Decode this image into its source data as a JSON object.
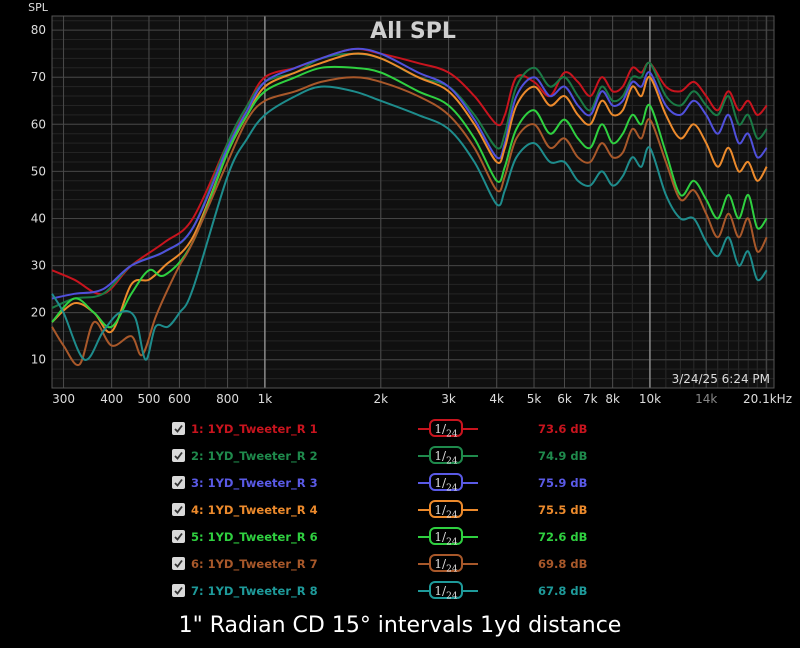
{
  "chart_data": {
    "type": "line",
    "title": "All SPL",
    "ylabel": "SPL",
    "xscale": "log",
    "xlim": [
      280,
      21000
    ],
    "ylim": [
      4,
      83
    ],
    "yticks": [
      10,
      20,
      30,
      40,
      50,
      60,
      70,
      80
    ],
    "xticks": [
      {
        "v": 300,
        "label": "300",
        "major": false
      },
      {
        "v": 400,
        "label": "400",
        "major": false
      },
      {
        "v": 500,
        "label": "500",
        "major": false
      },
      {
        "v": 600,
        "label": "600",
        "major": false
      },
      {
        "v": 800,
        "label": "800",
        "major": false
      },
      {
        "v": 1000,
        "label": "1k",
        "major": true
      },
      {
        "v": 2000,
        "label": "2k",
        "major": false
      },
      {
        "v": 3000,
        "label": "3k",
        "major": false
      },
      {
        "v": 4000,
        "label": "4k",
        "major": false
      },
      {
        "v": 5000,
        "label": "5k",
        "major": false
      },
      {
        "v": 6000,
        "label": "6k",
        "major": false
      },
      {
        "v": 7000,
        "label": "7k",
        "major": false
      },
      {
        "v": 8000,
        "label": "8k",
        "major": false
      },
      {
        "v": 10000,
        "label": "10k",
        "major": true
      },
      {
        "v": 14000,
        "label": "14k",
        "major": false,
        "dim": true
      },
      {
        "v": 20100,
        "label": "20.1kHz",
        "major": false
      }
    ],
    "grid": true,
    "timestamp": "3/24/25 6:24 PM",
    "series": [
      {
        "name": "1: 1YD_Tweeter_R 1",
        "color": "#c8141e",
        "x": [
          280,
          320,
          380,
          450,
          550,
          650,
          800,
          900,
          1000,
          1200,
          1400,
          1700,
          2000,
          2500,
          3000,
          3500,
          4000,
          4200,
          4500,
          5000,
          5500,
          6000,
          6500,
          7000,
          7500,
          8000,
          8500,
          9000,
          9500,
          10000,
          11000,
          12000,
          13000,
          14000,
          15000,
          16000,
          17000,
          18000,
          19000,
          20100
        ],
        "y": [
          29,
          27,
          24,
          30,
          35,
          40,
          56,
          64,
          70,
          72,
          74,
          76,
          75,
          73,
          71,
          66,
          60,
          62,
          70,
          69,
          66,
          71,
          69,
          66,
          70,
          67,
          68,
          72,
          71,
          73,
          68,
          67,
          69,
          66,
          63,
          67,
          63,
          65,
          62,
          64
        ]
      },
      {
        "name": "2: 1YD_Tweeter_R 2",
        "color": "#1a7a45",
        "x": [
          280,
          320,
          380,
          450,
          550,
          650,
          800,
          900,
          1000,
          1200,
          1400,
          1700,
          2000,
          2500,
          3000,
          3500,
          4000,
          4200,
          4500,
          5000,
          5500,
          6000,
          6500,
          7000,
          7500,
          8000,
          8500,
          9000,
          9500,
          10000,
          11000,
          12000,
          13000,
          14000,
          15000,
          16000,
          17000,
          18000,
          19000,
          20100
        ],
        "y": [
          21,
          23,
          24,
          30,
          33,
          38,
          56,
          64,
          69,
          71,
          74,
          75,
          74,
          70,
          68,
          62,
          55,
          58,
          68,
          72,
          68,
          70,
          66,
          63,
          68,
          65,
          66,
          70,
          70,
          73,
          66,
          64,
          67,
          64,
          62,
          66,
          60,
          62,
          57,
          59
        ]
      },
      {
        "name": "3: 1YD_Tweeter_R 3",
        "color": "#5050dc",
        "x": [
          280,
          320,
          380,
          450,
          550,
          650,
          800,
          900,
          1000,
          1200,
          1400,
          1700,
          2000,
          2500,
          3000,
          3500,
          4000,
          4200,
          4500,
          5000,
          5500,
          6000,
          6500,
          7000,
          7500,
          8000,
          8500,
          9000,
          9500,
          10000,
          11000,
          12000,
          13000,
          14000,
          15000,
          16000,
          17000,
          18000,
          19000,
          20100
        ],
        "y": [
          23,
          24,
          25,
          30,
          33,
          38,
          55,
          63,
          69,
          72,
          74,
          76,
          75,
          71,
          68,
          61,
          53,
          56,
          66,
          70,
          66,
          68,
          64,
          62,
          67,
          64,
          65,
          69,
          68,
          71,
          64,
          62,
          65,
          62,
          58,
          62,
          56,
          58,
          53,
          55
        ]
      },
      {
        "name": "4: 1YD_Tweeter_R 4",
        "color": "#ec8a2c",
        "x": [
          280,
          320,
          360,
          400,
          450,
          500,
          550,
          650,
          800,
          900,
          1000,
          1200,
          1400,
          1700,
          2000,
          2500,
          3000,
          3500,
          4000,
          4200,
          4500,
          5000,
          5500,
          6000,
          6500,
          7000,
          7500,
          8000,
          8500,
          9000,
          9500,
          10000,
          11000,
          12000,
          13000,
          14000,
          15000,
          16000,
          17000,
          18000,
          19000,
          20100
        ],
        "y": [
          18,
          22,
          20,
          16,
          26,
          27,
          30,
          36,
          54,
          62,
          68,
          71,
          73,
          75,
          74,
          70,
          67,
          60,
          52,
          55,
          64,
          68,
          64,
          66,
          62,
          60,
          65,
          62,
          63,
          68,
          66,
          70,
          62,
          57,
          60,
          56,
          51,
          55,
          50,
          52,
          48,
          51
        ]
      },
      {
        "name": "5: 1YD_Tweeter_R 6",
        "color": "#2fd040",
        "x": [
          280,
          320,
          360,
          400,
          450,
          500,
          550,
          650,
          800,
          900,
          1000,
          1200,
          1400,
          1700,
          2000,
          2500,
          3000,
          3500,
          4000,
          4200,
          4500,
          5000,
          5500,
          6000,
          6500,
          7000,
          7500,
          8000,
          8500,
          9000,
          9500,
          10000,
          11000,
          12000,
          13000,
          14000,
          15000,
          16000,
          17000,
          18000,
          19000,
          20100
        ],
        "y": [
          18,
          23,
          20,
          17,
          24,
          29,
          28,
          35,
          54,
          62,
          67,
          70,
          72,
          72,
          71,
          67,
          64,
          57,
          48,
          51,
          59,
          63,
          58,
          61,
          57,
          55,
          60,
          56,
          58,
          62,
          60,
          64,
          54,
          45,
          48,
          44,
          40,
          45,
          40,
          45,
          38,
          40
        ]
      },
      {
        "name": "6: 1YD_Tweeter_R 7",
        "color": "#a8582a",
        "x": [
          280,
          300,
          330,
          360,
          400,
          450,
          480,
          520,
          560,
          600,
          650,
          800,
          900,
          1000,
          1200,
          1400,
          1700,
          2000,
          2500,
          3000,
          3500,
          4000,
          4200,
          4500,
          5000,
          5500,
          6000,
          6500,
          7000,
          7500,
          8000,
          8500,
          9000,
          9500,
          10000,
          11000,
          12000,
          13000,
          14000,
          15000,
          16000,
          17000,
          18000,
          19000,
          20100
        ],
        "y": [
          17,
          13,
          9,
          18,
          13,
          15,
          11,
          19,
          25,
          30,
          35,
          52,
          61,
          65,
          67,
          69,
          70,
          69,
          66,
          62,
          55,
          46,
          49,
          57,
          60,
          55,
          57,
          53,
          52,
          56,
          53,
          54,
          59,
          57,
          61,
          52,
          44,
          46,
          41,
          36,
          41,
          36,
          40,
          33,
          36
        ]
      },
      {
        "name": "7: 1YD_Tweeter_R 8",
        "color": "#1e8c8c",
        "x": [
          280,
          300,
          340,
          380,
          420,
          460,
          490,
          520,
          560,
          600,
          650,
          800,
          900,
          1000,
          1200,
          1400,
          1700,
          2000,
          2500,
          3000,
          3500,
          4000,
          4200,
          4500,
          5000,
          5500,
          6000,
          6500,
          7000,
          7500,
          8000,
          8500,
          9000,
          9500,
          10000,
          11000,
          12000,
          13000,
          14000,
          15000,
          16000,
          17000,
          18000,
          19000,
          20100
        ],
        "y": [
          24,
          20,
          10,
          16,
          20,
          19,
          10,
          17,
          17,
          20,
          25,
          49,
          57,
          62,
          66,
          68,
          67,
          65,
          62,
          59,
          52,
          43,
          46,
          53,
          56,
          52,
          52,
          48,
          47,
          50,
          47,
          49,
          53,
          51,
          55,
          45,
          40,
          40,
          35,
          32,
          36,
          30,
          33,
          27,
          29
        ]
      }
    ]
  },
  "legend": [
    {
      "label": "1: 1YD_Tweeter_R 1",
      "db": "73.6 dB",
      "color": "#c8141e",
      "smoothing": "1/24"
    },
    {
      "label": "2: 1YD_Tweeter_R 2",
      "db": "74.9 dB",
      "color": "#1f8a4c",
      "smoothing": "1/24"
    },
    {
      "label": "3: 1YD_Tweeter_R 3",
      "db": "75.9 dB",
      "color": "#5a5ae6",
      "smoothing": "1/24"
    },
    {
      "label": "4: 1YD_Tweeter_R 4",
      "db": "75.5 dB",
      "color": "#ec8a2c",
      "smoothing": "1/24"
    },
    {
      "label": "5: 1YD_Tweeter_R 6",
      "db": "72.6 dB",
      "color": "#2fd040",
      "smoothing": "1/24"
    },
    {
      "label": "6: 1YD_Tweeter_R 7",
      "db": "69.8 dB",
      "color": "#a8582a",
      "smoothing": "1/24"
    },
    {
      "label": "7: 1YD_Tweeter_R 8",
      "db": "67.8 dB",
      "color": "#1e9a9a",
      "smoothing": "1/24"
    }
  ],
  "caption": "1\" Radian CD 15° intervals 1yd distance"
}
